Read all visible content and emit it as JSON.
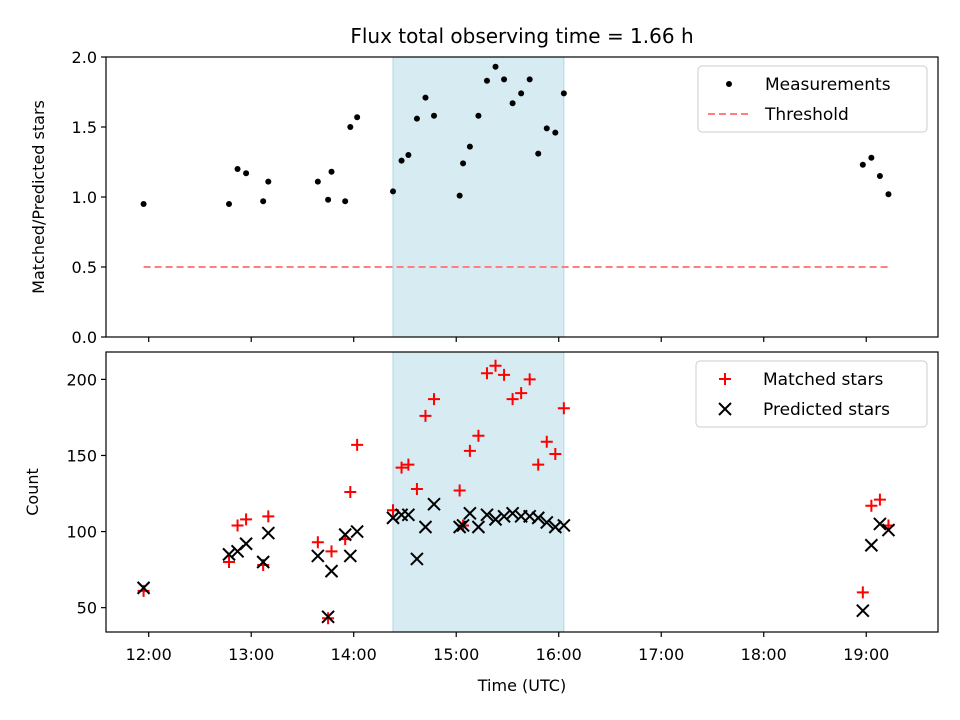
{
  "title": "Flux total observing time = 1.66 h",
  "highlight": {
    "start": "14:23",
    "end": "16:03",
    "color": "#add8e6"
  },
  "x_axis": {
    "label": "Time (UTC)",
    "ticks": [
      "12:00",
      "13:00",
      "14:00",
      "15:00",
      "16:00",
      "17:00",
      "18:00",
      "19:00"
    ]
  },
  "top_panel": {
    "ylabel": "Matched/Predicted stars",
    "yticks": [
      "0.0",
      "0.5",
      "1.0",
      "1.5",
      "2.0"
    ],
    "legend": {
      "measurements": "Measurements",
      "threshold": "Threshold"
    }
  },
  "bottom_panel": {
    "ylabel": "Count",
    "yticks": [
      "50",
      "100",
      "150",
      "200"
    ],
    "legend": {
      "matched": "Matched stars",
      "predicted": "Predicted stars"
    }
  },
  "chart_data": [
    {
      "type": "scatter",
      "title": "Flux total observing time = 1.66 h",
      "xlabel": "",
      "ylabel": "Matched/Predicted stars",
      "ylim": [
        0,
        2.0
      ],
      "xlim": [
        "11:35",
        "19:42"
      ],
      "legend_position": "top-right",
      "series": [
        {
          "name": "Measurements",
          "marker": "dot",
          "color": "#000000",
          "points": [
            [
              "11:57",
              0.95
            ],
            [
              "12:47",
              0.95
            ],
            [
              "12:52",
              1.2
            ],
            [
              "12:57",
              1.17
            ],
            [
              "13:07",
              0.97
            ],
            [
              "13:10",
              1.11
            ],
            [
              "13:39",
              1.11
            ],
            [
              "13:45",
              0.98
            ],
            [
              "13:47",
              1.18
            ],
            [
              "13:55",
              0.97
            ],
            [
              "13:58",
              1.5
            ],
            [
              "14:02",
              1.57
            ],
            [
              "14:23",
              1.04
            ],
            [
              "14:28",
              1.26
            ],
            [
              "14:32",
              1.3
            ],
            [
              "14:37",
              1.56
            ],
            [
              "14:42",
              1.71
            ],
            [
              "14:47",
              1.58
            ],
            [
              "15:02",
              1.01
            ],
            [
              "15:04",
              1.24
            ],
            [
              "15:08",
              1.36
            ],
            [
              "15:13",
              1.58
            ],
            [
              "15:18",
              1.83
            ],
            [
              "15:23",
              1.93
            ],
            [
              "15:28",
              1.84
            ],
            [
              "15:33",
              1.67
            ],
            [
              "15:38",
              1.74
            ],
            [
              "15:43",
              1.84
            ],
            [
              "15:48",
              1.31
            ],
            [
              "15:53",
              1.49
            ],
            [
              "15:58",
              1.46
            ],
            [
              "16:03",
              1.74
            ],
            [
              "18:58",
              1.23
            ],
            [
              "19:03",
              1.28
            ],
            [
              "19:08",
              1.15
            ],
            [
              "19:13",
              1.02
            ]
          ]
        },
        {
          "name": "Threshold",
          "style": "dashed",
          "color": "#ff7f7f",
          "points": [
            [
              "11:57",
              0.5
            ],
            [
              "19:13",
              0.5
            ]
          ]
        }
      ]
    },
    {
      "type": "scatter",
      "xlabel": "Time (UTC)",
      "ylabel": "Count",
      "ylim": [
        34,
        218
      ],
      "xlim": [
        "11:35",
        "19:42"
      ],
      "legend_position": "top-right",
      "series": [
        {
          "name": "Matched stars",
          "marker": "+",
          "color": "#ff0000",
          "points": [
            [
              "11:57",
              61
            ],
            [
              "12:47",
              80
            ],
            [
              "12:52",
              104
            ],
            [
              "12:57",
              108
            ],
            [
              "13:07",
              78
            ],
            [
              "13:10",
              110
            ],
            [
              "13:39",
              93
            ],
            [
              "13:45",
              43
            ],
            [
              "13:47",
              87
            ],
            [
              "13:55",
              95
            ],
            [
              "13:58",
              126
            ],
            [
              "14:02",
              157
            ],
            [
              "14:23",
              114
            ],
            [
              "14:28",
              142
            ],
            [
              "14:32",
              144
            ],
            [
              "14:37",
              128
            ],
            [
              "14:42",
              176
            ],
            [
              "14:47",
              187
            ],
            [
              "15:02",
              127
            ],
            [
              "15:04",
              104
            ],
            [
              "15:08",
              153
            ],
            [
              "15:13",
              163
            ],
            [
              "15:18",
              204
            ],
            [
              "15:23",
              209
            ],
            [
              "15:28",
              203
            ],
            [
              "15:33",
              187
            ],
            [
              "15:38",
              191
            ],
            [
              "15:43",
              200
            ],
            [
              "15:48",
              144
            ],
            [
              "15:53",
              159
            ],
            [
              "15:58",
              151
            ],
            [
              "16:03",
              181
            ],
            [
              "18:58",
              60
            ],
            [
              "19:03",
              117
            ],
            [
              "19:08",
              121
            ],
            [
              "19:13",
              104
            ]
          ]
        },
        {
          "name": "Predicted stars",
          "marker": "x",
          "color": "#000000",
          "points": [
            [
              "11:57",
              63
            ],
            [
              "12:47",
              85
            ],
            [
              "12:52",
              87
            ],
            [
              "12:57",
              92
            ],
            [
              "13:07",
              80
            ],
            [
              "13:10",
              99
            ],
            [
              "13:39",
              84
            ],
            [
              "13:45",
              44
            ],
            [
              "13:47",
              74
            ],
            [
              "13:55",
              98
            ],
            [
              "13:58",
              84
            ],
            [
              "14:02",
              100
            ],
            [
              "14:23",
              109
            ],
            [
              "14:28",
              111
            ],
            [
              "14:32",
              111
            ],
            [
              "14:37",
              82
            ],
            [
              "14:42",
              103
            ],
            [
              "14:47",
              118
            ],
            [
              "15:02",
              103
            ],
            [
              "15:04",
              104
            ],
            [
              "15:08",
              112
            ],
            [
              "15:13",
              103
            ],
            [
              "15:18",
              111
            ],
            [
              "15:23",
              108
            ],
            [
              "15:28",
              110
            ],
            [
              "15:33",
              112
            ],
            [
              "15:38",
              110
            ],
            [
              "15:43",
              110
            ],
            [
              "15:48",
              109
            ],
            [
              "15:53",
              106
            ],
            [
              "15:58",
              103
            ],
            [
              "16:03",
              104
            ],
            [
              "18:58",
              48
            ],
            [
              "19:03",
              91
            ],
            [
              "19:08",
              105
            ],
            [
              "19:13",
              101
            ]
          ]
        }
      ]
    }
  ]
}
